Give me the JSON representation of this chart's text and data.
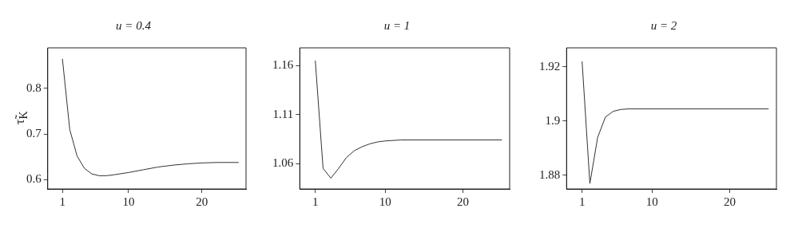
{
  "chart_data": [
    {
      "type": "line",
      "title": "u = 0.4",
      "ylabel": "τ̃$_{K}$",
      "color": "#333333",
      "marker": "none",
      "grid": false,
      "legend": false,
      "x": [
        1,
        2,
        3,
        4,
        5,
        6,
        7,
        8,
        10,
        12,
        14,
        16,
        18,
        20,
        22,
        25
      ],
      "values": [
        0.865,
        0.71,
        0.652,
        0.625,
        0.613,
        0.609,
        0.609,
        0.611,
        0.616,
        0.622,
        0.628,
        0.632,
        0.635,
        0.637,
        0.638,
        0.638
      ],
      "xlim": [
        -1,
        26
      ],
      "xticks": [
        1,
        10,
        20
      ],
      "ylim": [
        0.58,
        0.889
      ],
      "yticks": [
        0.6,
        0.7,
        0.8
      ]
    },
    {
      "type": "line",
      "title": "u = 1",
      "color": "#333333",
      "marker": "none",
      "grid": false,
      "legend": false,
      "x": [
        1,
        2,
        3,
        4,
        5,
        6,
        7,
        8,
        9,
        10,
        12,
        25
      ],
      "values": [
        1.165,
        1.055,
        1.045,
        1.055,
        1.066,
        1.073,
        1.077,
        1.08,
        1.082,
        1.083,
        1.084,
        1.084
      ],
      "xlim": [
        -1,
        26
      ],
      "xticks": [
        1,
        10,
        20
      ],
      "ylim": [
        1.034,
        1.178
      ],
      "yticks": [
        1.06,
        1.11,
        1.16
      ]
    },
    {
      "type": "line",
      "title": "u = 2",
      "color": "#333333",
      "marker": "none",
      "grid": false,
      "legend": false,
      "x": [
        1,
        2,
        3,
        4,
        5,
        6,
        7,
        25
      ],
      "values": [
        1.922,
        1.877,
        1.894,
        1.9015,
        1.9036,
        1.9043,
        1.9045,
        1.9045
      ],
      "xlim": [
        -1,
        26
      ],
      "xticks": [
        1,
        10,
        20
      ],
      "ylim": [
        1.875,
        1.927
      ],
      "yticks": [
        1.88,
        1.9,
        1.92
      ]
    }
  ]
}
